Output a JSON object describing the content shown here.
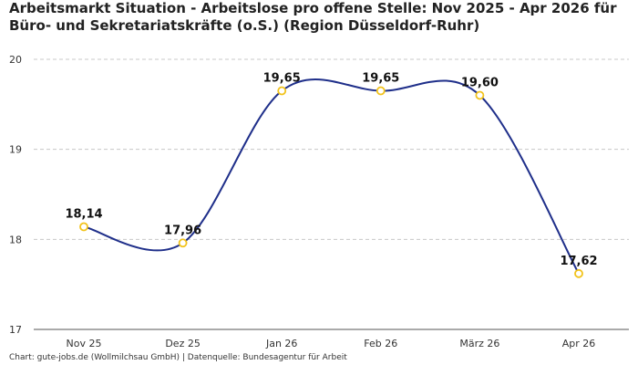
{
  "title": "Arbeitsmarkt Situation - Arbeitslose pro offene Stelle: Nov 2025 - Apr 2026 für Büro- und Sekretariatskräfte (o.S.) (Region Düsseldorf-Ruhr)",
  "footer": "Chart: gute-jobs.de (Wollmilchsau GmbH) | Datenquelle: Bundesagentur für Arbeit",
  "chart_data": {
    "type": "line",
    "categories": [
      "Nov 25",
      "Dez 25",
      "Jan 26",
      "Feb 26",
      "März 26",
      "Apr 26"
    ],
    "values": [
      18.14,
      17.96,
      19.65,
      19.65,
      19.6,
      17.62
    ],
    "data_labels": [
      "18,14",
      "17,96",
      "19,65",
      "19,65",
      "19,60",
      "17,62"
    ],
    "yticks": [
      17,
      18,
      19,
      20
    ],
    "ylim": [
      17,
      20
    ],
    "grid": true,
    "line_color": "#1f2f8a",
    "marker_color": "#f2c31b"
  }
}
